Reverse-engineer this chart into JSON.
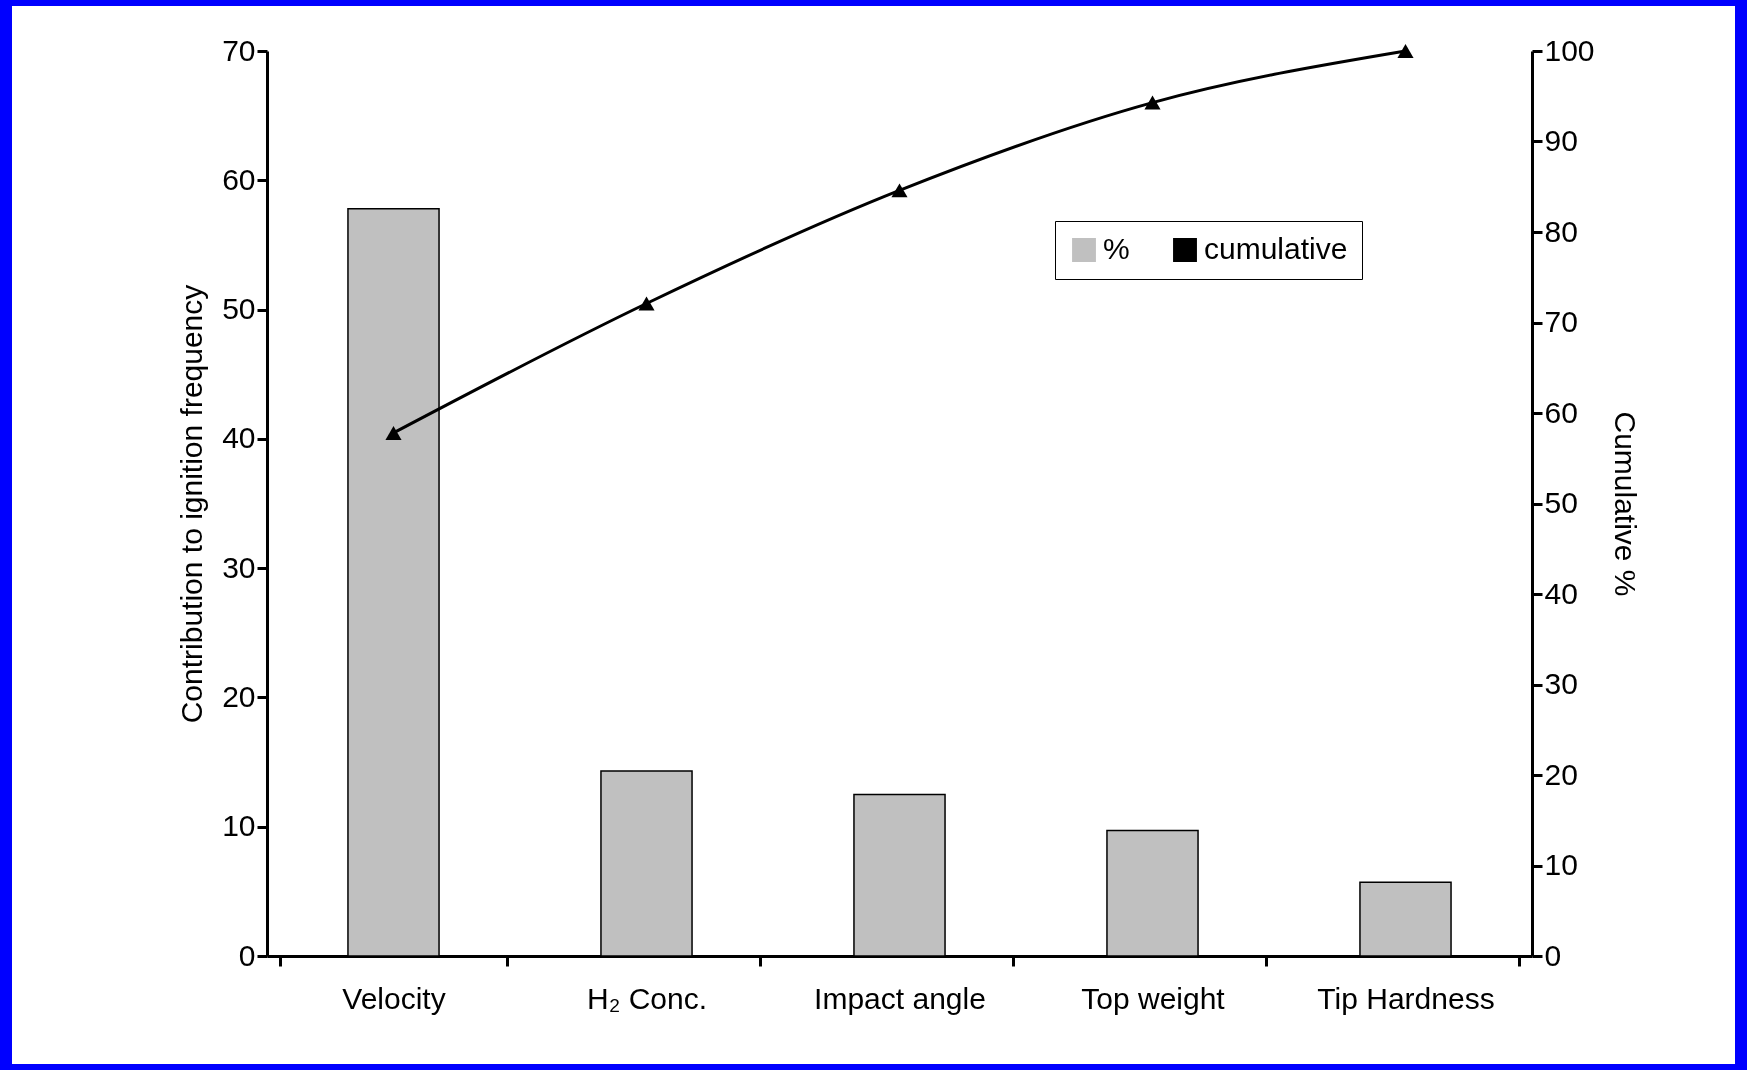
{
  "chart_data": {
    "type": "bar",
    "categories": [
      "Velocity",
      "H₂ Conc.",
      "Impact angle",
      "Top weight",
      "Tip Hardness"
    ],
    "ylabel": "Contribution to ignition frequency",
    "y2label": "Cumulative %",
    "ylim": [
      0,
      70
    ],
    "yticks": [
      0,
      10,
      20,
      30,
      40,
      50,
      60,
      70
    ],
    "y2lim": [
      0,
      100
    ],
    "y2ticks": [
      0,
      10,
      20,
      30,
      40,
      50,
      60,
      70,
      80,
      90,
      100
    ],
    "grid": false,
    "legend": "top right",
    "marker": "triangle",
    "series": [
      {
        "name": "%",
        "color": "#c0c0c0",
        "values": [
          57.8,
          14.3,
          12.5,
          9.7,
          5.7
        ]
      },
      {
        "name": "cumulative",
        "type": "line",
        "axis": "y2",
        "color": "#000000",
        "values": [
          57.8,
          72.1,
          84.6,
          94.3,
          100
        ]
      }
    ]
  }
}
